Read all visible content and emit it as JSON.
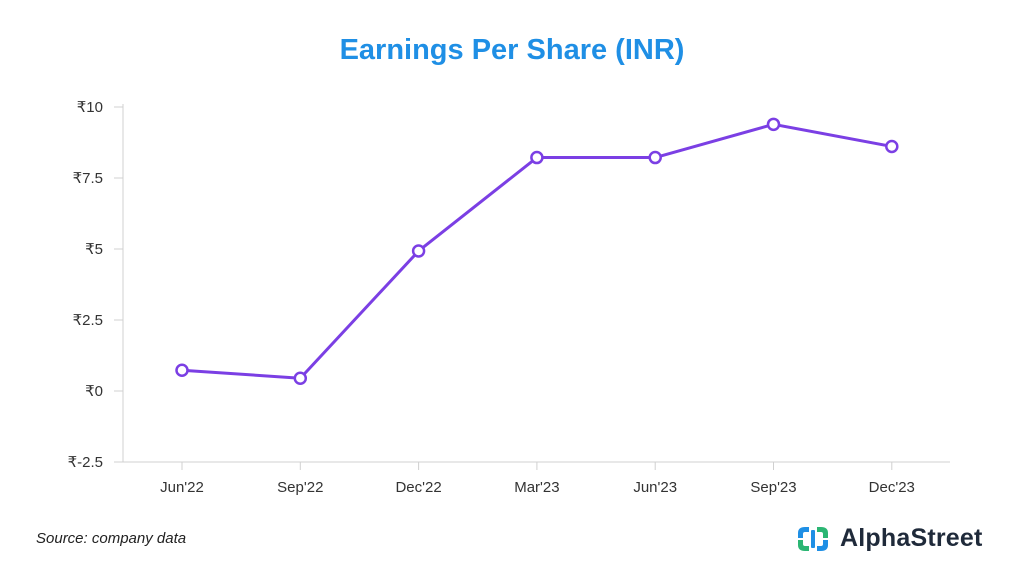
{
  "title": "Earnings Per Share (INR)",
  "source": "Source: company data",
  "brand": {
    "name": "AlphaStreet",
    "logo_icon": "alphastreet-logo-icon"
  },
  "colors": {
    "title": "#1f8fe5",
    "line": "#7b3fe4",
    "axis": "#d0d0d0"
  },
  "chart_data": {
    "type": "line",
    "title": "Earnings Per Share (INR)",
    "xlabel": "",
    "ylabel": "",
    "categories": [
      "Jun'22",
      "Sep'22",
      "Dec'22",
      "Mar'23",
      "Jun'23",
      "Sep'23",
      "Dec'23"
    ],
    "series": [
      {
        "values": [
          0.73,
          0.45,
          4.93,
          8.22,
          8.22,
          9.39,
          8.61
        ]
      }
    ],
    "ylim": [
      -2.5,
      10
    ],
    "y_ticks": [
      -2.5,
      0,
      2.5,
      5,
      7.5,
      10
    ],
    "y_tick_labels": [
      "₹-2.5",
      "₹0",
      "₹2.5",
      "₹5",
      "₹7.5",
      "₹10"
    ],
    "markers": "hollow-circle",
    "grid": false,
    "legend": "none"
  }
}
